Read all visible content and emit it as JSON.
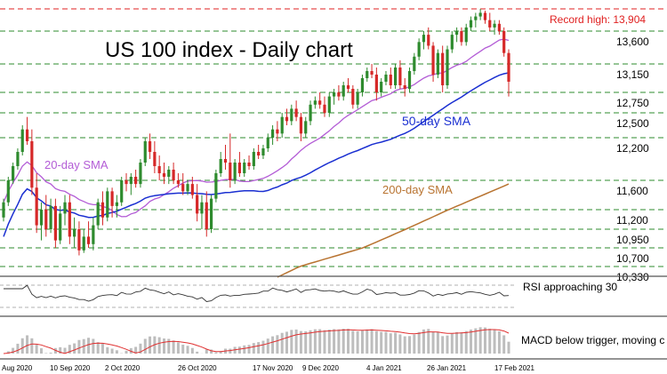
{
  "chart_data": {
    "type": "candlestick",
    "title": "US 100 index - Daily chart",
    "level_labels": [
      "Record high: 13,904",
      "13,600",
      "13,150",
      "12,750",
      "12,500",
      "12,200",
      "11,600",
      "11,200",
      "10,950",
      "10,700",
      "10,330"
    ],
    "levels": [
      13904,
      13600,
      13150,
      12750,
      12500,
      12200,
      11600,
      11200,
      10950,
      10700,
      10330
    ],
    "ylim": [
      10200,
      14000
    ],
    "series_labels": {
      "sma20": "20-day SMA",
      "sma50": "50-day SMA",
      "sma200": "200-day SMA"
    },
    "colors": {
      "up": "#2e8b2e",
      "down": "#d62828",
      "sma20": "#b35cd6",
      "sma50": "#1a2fd1",
      "sma200": "#b87330",
      "record_line": "#e02020",
      "level_line": "#2e8b2e",
      "macd_hist": "#bdbdbd",
      "macd_signal": "#e03030"
    },
    "x_tick_labels": [
      "Aug 2020",
      "10 Sep 2020",
      "2 Oct 2020",
      "26 Oct 2020",
      "17 Nov 2020",
      "9 Dec 2020",
      "4 Jan 2021",
      "26 Jan 2021",
      "17 Feb 2021"
    ],
    "rsi_label": "RSI approaching 30",
    "macd_label": "MACD below trigger, moving c",
    "candles": [
      [
        11100,
        11350,
        11050,
        11300
      ],
      [
        11300,
        11650,
        11250,
        11600
      ],
      [
        11600,
        11850,
        11550,
        11800
      ],
      [
        11800,
        12050,
        11750,
        12000
      ],
      [
        12000,
        12350,
        11950,
        12300
      ],
      [
        12300,
        12450,
        12100,
        12150
      ],
      [
        12150,
        12300,
        11400,
        11500
      ],
      [
        11500,
        11700,
        10900,
        11000
      ],
      [
        11000,
        11300,
        10800,
        11200
      ],
      [
        11200,
        11400,
        10850,
        10950
      ],
      [
        10950,
        11350,
        10900,
        11250
      ],
      [
        11250,
        11350,
        10700,
        10800
      ],
      [
        10800,
        11250,
        10750,
        11150
      ],
      [
        11150,
        11400,
        11000,
        11300
      ],
      [
        11300,
        11400,
        10750,
        10850
      ],
      [
        10850,
        11100,
        10700,
        10950
      ],
      [
        10950,
        11050,
        10550,
        10650
      ],
      [
        10650,
        10950,
        10600,
        10850
      ],
      [
        10850,
        11050,
        10700,
        10750
      ],
      [
        10750,
        11100,
        10650,
        11000
      ],
      [
        11000,
        11350,
        10950,
        11300
      ],
      [
        11300,
        11450,
        11000,
        11100
      ],
      [
        11100,
        11500,
        11050,
        11450
      ],
      [
        11450,
        11500,
        11100,
        11250
      ],
      [
        11250,
        11400,
        11100,
        11300
      ],
      [
        11300,
        11650,
        11250,
        11600
      ],
      [
        11600,
        11700,
        11450,
        11550
      ],
      [
        11550,
        11700,
        11400,
        11650
      ],
      [
        11650,
        11750,
        11500,
        11550
      ],
      [
        11550,
        11900,
        11500,
        11850
      ],
      [
        11850,
        12200,
        11800,
        12150
      ],
      [
        12150,
        12250,
        11900,
        12000
      ],
      [
        12000,
        12150,
        11700,
        11800
      ],
      [
        11800,
        11950,
        11600,
        11700
      ],
      [
        11700,
        11850,
        11550,
        11650
      ],
      [
        11650,
        11800,
        11550,
        11750
      ],
      [
        11750,
        11850,
        11550,
        11600
      ],
      [
        11600,
        11700,
        11500,
        11550
      ],
      [
        11550,
        11700,
        11400,
        11450
      ],
      [
        11450,
        11600,
        11400,
        11550
      ],
      [
        11550,
        11650,
        11350,
        11400
      ],
      [
        11400,
        11550,
        11050,
        11150
      ],
      [
        11150,
        11400,
        10950,
        11300
      ],
      [
        11300,
        11450,
        10850,
        10950
      ],
      [
        10950,
        11400,
        10900,
        11350
      ],
      [
        11350,
        11750,
        11300,
        11700
      ],
      [
        11700,
        12000,
        11650,
        11900
      ],
      [
        11900,
        12100,
        11750,
        11850
      ],
      [
        11850,
        12250,
        11500,
        11600
      ],
      [
        11600,
        11900,
        11550,
        11850
      ],
      [
        11850,
        12000,
        11650,
        11700
      ],
      [
        11700,
        11900,
        11650,
        11850
      ],
      [
        11850,
        11950,
        11750,
        11800
      ],
      [
        11800,
        12050,
        11750,
        12000
      ],
      [
        12000,
        12100,
        11900,
        11950
      ],
      [
        11950,
        12100,
        11900,
        12050
      ],
      [
        12050,
        12250,
        12000,
        12200
      ],
      [
        12200,
        12350,
        12100,
        12300
      ],
      [
        12300,
        12400,
        12150,
        12250
      ],
      [
        12250,
        12500,
        12200,
        12450
      ],
      [
        12450,
        12550,
        12350,
        12400
      ],
      [
        12400,
        12600,
        12350,
        12550
      ],
      [
        12550,
        12650,
        12400,
        12450
      ],
      [
        12450,
        12500,
        12150,
        12250
      ],
      [
        12250,
        12450,
        12200,
        12400
      ],
      [
        12400,
        12650,
        12350,
        12600
      ],
      [
        12600,
        12700,
        12550,
        12650
      ],
      [
        12650,
        12750,
        12550,
        12600
      ],
      [
        12600,
        12700,
        12450,
        12500
      ],
      [
        12500,
        12750,
        12450,
        12700
      ],
      [
        12700,
        12800,
        12600,
        12750
      ],
      [
        12750,
        12850,
        12650,
        12700
      ],
      [
        12700,
        12900,
        12650,
        12850
      ],
      [
        12850,
        12950,
        12750,
        12800
      ],
      [
        12800,
        12850,
        12550,
        12600
      ],
      [
        12600,
        12800,
        12550,
        12750
      ],
      [
        12750,
        13000,
        12700,
        12950
      ],
      [
        12950,
        13100,
        12900,
        13050
      ],
      [
        13050,
        13150,
        12950,
        13000
      ],
      [
        13000,
        13100,
        12650,
        12750
      ],
      [
        12750,
        12950,
        12700,
        12900
      ],
      [
        12900,
        13050,
        12850,
        13000
      ],
      [
        13000,
        13100,
        12800,
        12850
      ],
      [
        12850,
        13150,
        12800,
        13100
      ],
      [
        13100,
        13200,
        12800,
        12850
      ],
      [
        12850,
        12950,
        12700,
        12800
      ],
      [
        12800,
        13100,
        12750,
        13050
      ],
      [
        13050,
        13300,
        13000,
        13250
      ],
      [
        13250,
        13500,
        13200,
        13450
      ],
      [
        13450,
        13600,
        13350,
        13550
      ],
      [
        13550,
        13650,
        13350,
        13400
      ],
      [
        13400,
        13450,
        12900,
        13000
      ],
      [
        13000,
        13350,
        12950,
        13300
      ],
      [
        13300,
        13400,
        12750,
        12850
      ],
      [
        12850,
        13400,
        12800,
        13350
      ],
      [
        13350,
        13600,
        13300,
        13550
      ],
      [
        13550,
        13650,
        13450,
        13600
      ],
      [
        13600,
        13650,
        13400,
        13450
      ],
      [
        13450,
        13700,
        13400,
        13650
      ],
      [
        13650,
        13800,
        13600,
        13750
      ],
      [
        13750,
        13850,
        13650,
        13800
      ],
      [
        13800,
        13904,
        13750,
        13850
      ],
      [
        13850,
        13880,
        13700,
        13750
      ],
      [
        13750,
        13850,
        13600,
        13650
      ],
      [
        13650,
        13750,
        13550,
        13700
      ],
      [
        13700,
        13750,
        13550,
        13600
      ],
      [
        13600,
        13650,
        13250,
        13300
      ],
      [
        13300,
        13350,
        12700,
        12900
      ]
    ]
  }
}
